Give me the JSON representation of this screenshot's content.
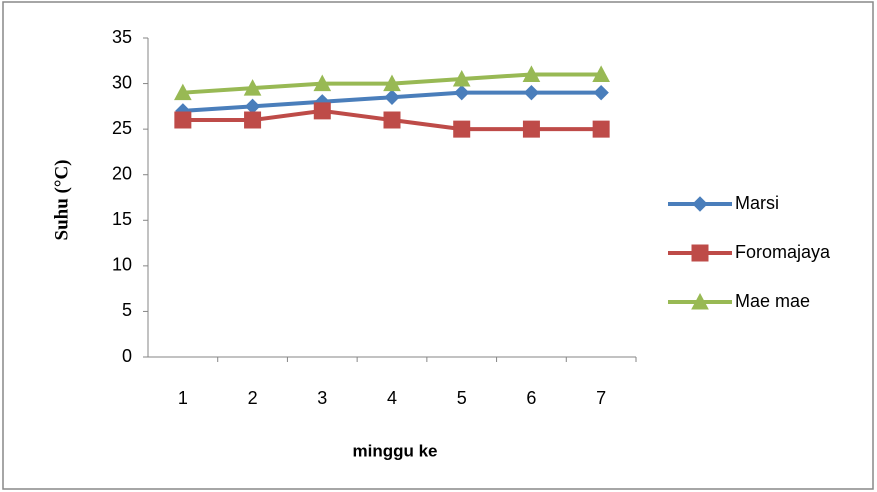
{
  "chart_data": {
    "type": "line",
    "x_label": "minggu ke",
    "y_label": "Suhu (°C)",
    "categories": [
      "1",
      "2",
      "3",
      "4",
      "5",
      "6",
      "7"
    ],
    "series": [
      {
        "name": "Marsi",
        "color": "#4a7ebb",
        "marker": "diamond",
        "values": [
          27,
          27.5,
          28,
          28.5,
          29,
          29,
          29
        ]
      },
      {
        "name": "Foromajaya",
        "color": "#be4b48",
        "marker": "square",
        "values": [
          26,
          26,
          27,
          26,
          25,
          25,
          25
        ]
      },
      {
        "name": "Mae mae",
        "color": "#98b954",
        "marker": "triangle",
        "values": [
          29,
          29.5,
          30,
          30,
          30.5,
          31,
          31
        ]
      }
    ],
    "ylim": [
      0,
      35
    ],
    "yticks": [
      0,
      5,
      10,
      15,
      20,
      25,
      30,
      35
    ],
    "grid": false,
    "legend": "right"
  }
}
